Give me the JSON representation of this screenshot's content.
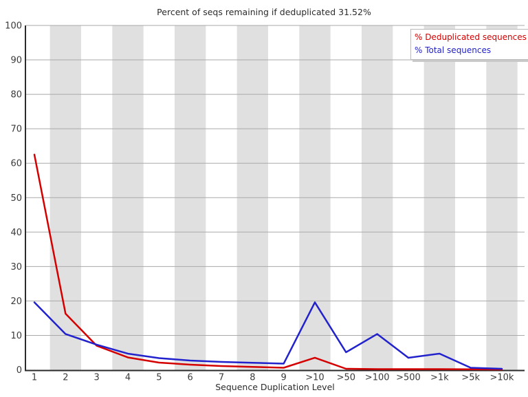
{
  "chart_data": {
    "type": "line",
    "title": "Percent of seqs remaining if deduplicated 31.52%",
    "xlabel": "Sequence Duplication Level",
    "ylabel": "",
    "categories": [
      "1",
      "2",
      "3",
      "4",
      "5",
      "6",
      "7",
      "8",
      "9",
      ">10",
      ">50",
      ">100",
      ">500",
      ">1k",
      ">5k",
      ">10k"
    ],
    "series": [
      {
        "name": "% Deduplicated sequences",
        "color": "#d40000",
        "values": [
          62.5,
          16.3,
          7.0,
          3.6,
          2.1,
          1.5,
          1.1,
          0.85,
          0.6,
          3.5,
          0.3,
          0.2,
          0.2,
          0.2,
          0.15,
          0.1
        ]
      },
      {
        "name": "% Total sequences",
        "color": "#2222cc",
        "values": [
          19.6,
          10.4,
          7.3,
          4.7,
          3.4,
          2.7,
          2.3,
          2.05,
          1.8,
          19.6,
          5.1,
          10.4,
          3.5,
          4.7,
          0.6,
          0.3
        ]
      }
    ],
    "ylim": [
      0,
      100
    ],
    "ytick_step": 10,
    "grid": true,
    "legend_position": "top-right",
    "background_bands": "alternating gray stripes on even categories"
  },
  "style": {
    "band_color": "#e0e0e0",
    "grid_color": "#a9a9a9",
    "axis_color": "#2a2a2a",
    "tick_label_color": "#3a3a3a",
    "legend_border_color": "#b9b9b9"
  }
}
